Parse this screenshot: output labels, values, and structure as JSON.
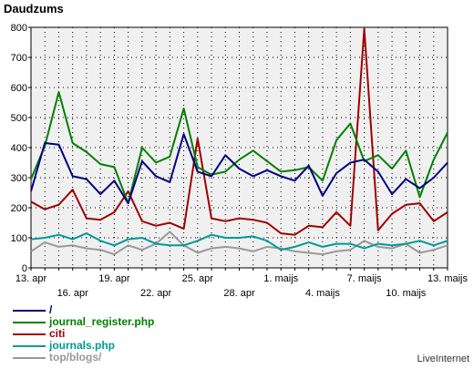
{
  "chart_data": {
    "type": "line",
    "title": "Daudzums",
    "xlabel": "",
    "ylabel": "",
    "ylim": [
      0,
      800
    ],
    "yticks": [
      0,
      100,
      200,
      300,
      400,
      500,
      600,
      700,
      800
    ],
    "grid": true,
    "legend_position": "bottom-left",
    "x_tick_labels": [
      {
        "index": 0,
        "label": "13. apr"
      },
      {
        "index": 3,
        "label": "16. apr"
      },
      {
        "index": 6,
        "label": "19. apr"
      },
      {
        "index": 9,
        "label": "22. apr"
      },
      {
        "index": 12,
        "label": "25. apr"
      },
      {
        "index": 15,
        "label": "28. apr"
      },
      {
        "index": 18,
        "label": "1. maijs"
      },
      {
        "index": 21,
        "label": "4. maijs"
      },
      {
        "index": 24,
        "label": "7. maijs"
      },
      {
        "index": 27,
        "label": "10. maijs"
      },
      {
        "index": 30,
        "label": "13. maijs"
      }
    ],
    "series": [
      {
        "name": "/",
        "color": "#000080",
        "values": [
          255,
          415,
          410,
          305,
          295,
          245,
          290,
          215,
          355,
          305,
          285,
          445,
          320,
          305,
          375,
          330,
          305,
          325,
          305,
          290,
          340,
          240,
          315,
          350,
          360,
          320,
          245,
          295,
          265,
          300,
          350
        ]
      },
      {
        "name": "journal_register.php",
        "color": "#008000",
        "values": [
          295,
          405,
          585,
          415,
          385,
          345,
          335,
          215,
          400,
          350,
          370,
          530,
          335,
          310,
          320,
          360,
          390,
          355,
          320,
          325,
          335,
          290,
          425,
          480,
          355,
          375,
          330,
          390,
          235,
          360,
          450
        ]
      },
      {
        "name": "citi",
        "color": "#a00000",
        "values": [
          220,
          195,
          210,
          260,
          165,
          160,
          185,
          255,
          155,
          140,
          150,
          130,
          430,
          165,
          155,
          165,
          160,
          150,
          115,
          110,
          140,
          135,
          185,
          140,
          795,
          125,
          180,
          210,
          215,
          155,
          185
        ]
      },
      {
        "name": "journals.php",
        "color": "#009999",
        "values": [
          95,
          100,
          110,
          95,
          115,
          90,
          75,
          95,
          100,
          80,
          75,
          75,
          90,
          110,
          100,
          100,
          105,
          90,
          60,
          70,
          85,
          70,
          80,
          80,
          65,
          80,
          75,
          80,
          90,
          75,
          90
        ]
      },
      {
        "name": "top/blogs/",
        "color": "#999999",
        "values": [
          55,
          85,
          70,
          75,
          65,
          60,
          45,
          75,
          60,
          80,
          120,
          75,
          50,
          65,
          70,
          65,
          55,
          70,
          65,
          55,
          50,
          45,
          55,
          60,
          90,
          70,
          65,
          80,
          50,
          60,
          75
        ]
      }
    ]
  },
  "footer": {
    "watermark": "LiveInternet"
  }
}
